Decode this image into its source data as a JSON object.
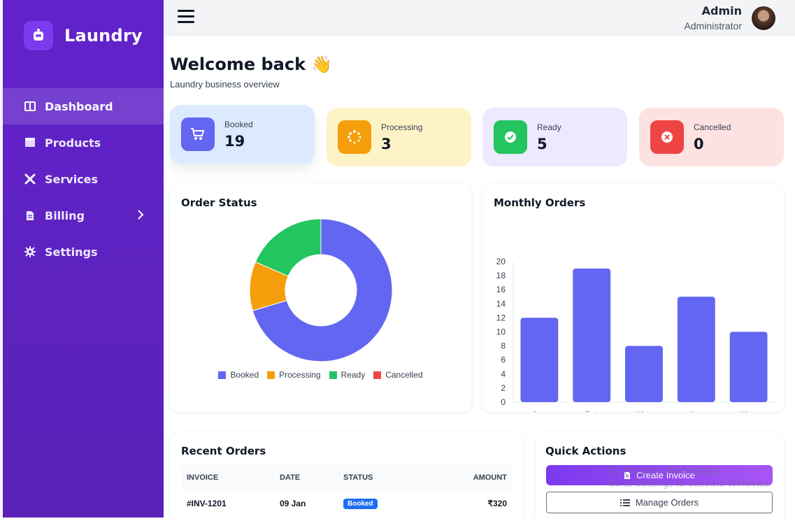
{
  "brand": {
    "name": "Laundry"
  },
  "sidebar": {
    "items": [
      {
        "label": "Dashboard",
        "icon": "dashboard-icon",
        "active": true
      },
      {
        "label": "Products",
        "icon": "box-icon"
      },
      {
        "label": "Services",
        "icon": "tools-icon"
      },
      {
        "label": "Billing",
        "icon": "document-icon",
        "submenu": true
      },
      {
        "label": "Settings",
        "icon": "gear-icon"
      }
    ]
  },
  "header": {
    "user_name": "Admin",
    "user_role": "Administrator"
  },
  "page": {
    "title": "Welcome back",
    "emoji": "👋",
    "subtitle": "Laundry business overview"
  },
  "stats": [
    {
      "label": "Booked",
      "value": "19",
      "color": "#6366f1",
      "bg": "#dbeafe",
      "icon": "cart-icon"
    },
    {
      "label": "Processing",
      "value": "3",
      "color": "#f59e0b",
      "bg": "#fef3c7",
      "icon": "spinner-icon"
    },
    {
      "label": "Ready",
      "value": "5",
      "color": "#22c55e",
      "bg": "#ede9fe",
      "icon": "check-circle-icon"
    },
    {
      "label": "Cancelled",
      "value": "0",
      "color": "#ef4444",
      "bg": "#fee2e2",
      "icon": "x-circle-icon"
    }
  ],
  "order_status": {
    "title": "Order Status"
  },
  "monthly_orders": {
    "title": "Monthly Orders"
  },
  "chart_data": [
    {
      "type": "pie",
      "title": "Order Status",
      "categories": [
        "Booked",
        "Processing",
        "Ready",
        "Cancelled"
      ],
      "values": [
        19,
        3,
        5,
        0
      ],
      "colors": [
        "#6366f1",
        "#f59e0b",
        "#22c55e",
        "#ef4444"
      ],
      "style": "doughnut",
      "legend": "bottom"
    },
    {
      "type": "bar",
      "title": "Monthly Orders",
      "categories": [
        "Jan",
        "Feb",
        "Mar",
        "Apr",
        "May"
      ],
      "values": [
        12,
        19,
        8,
        15,
        10
      ],
      "ylim": [
        0,
        20
      ],
      "yticks": [
        0,
        2,
        4,
        6,
        8,
        10,
        12,
        14,
        16,
        18,
        20
      ],
      "color": "#6366f1",
      "grid": false
    }
  ],
  "recent_orders": {
    "title": "Recent Orders",
    "columns": [
      "INVOICE",
      "DATE",
      "STATUS",
      "AMOUNT"
    ],
    "rows": [
      {
        "invoice": "#INV-1201",
        "date": "09 Jan",
        "status": "Booked",
        "amount": "₹320"
      }
    ]
  },
  "quick_actions": {
    "title": "Quick Actions",
    "create_invoice": "Create Invoice",
    "manage_orders": "Manage Orders"
  },
  "watermark": {
    "line1": "Activate Windows",
    "line2": "Go to Settings to activate Windows."
  }
}
